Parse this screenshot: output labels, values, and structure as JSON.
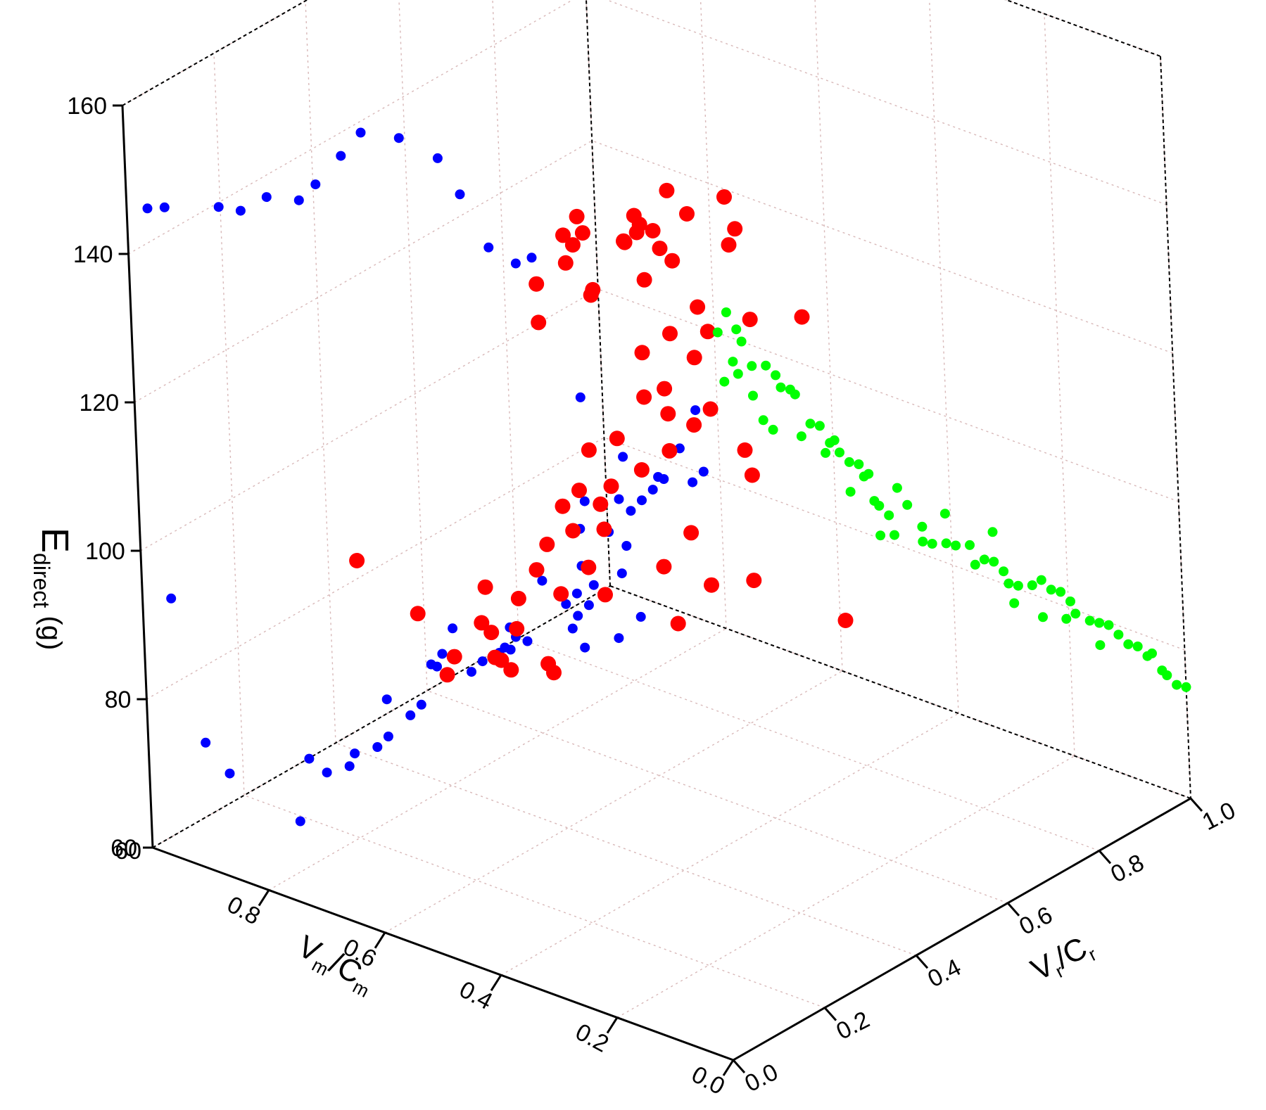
{
  "colors": {
    "series_0": "#0000ff",
    "series_1": "#ff0000",
    "series_2": "#00ff00"
  },
  "chart_data": {
    "type": "scatter",
    "title": "",
    "zlabel": "E",
    "zlabel_sub": "direct",
    "zlabel_unit": " (g)",
    "xlabel": "V",
    "xlabel_sub": "m",
    "xlabel_mid": "/C",
    "xlabel_sub2": "m",
    "ylabel": "V",
    "ylabel_sub": "r",
    "ylabel_mid": "/C",
    "ylabel_sub2": "r",
    "xlim": [
      0,
      1
    ],
    "ylim": [
      0,
      1
    ],
    "zlim": [
      60,
      160
    ],
    "x_ticks": [
      "0.0",
      "0.2",
      "0.4",
      "0.6",
      "0.8"
    ],
    "y_ticks": [
      "0.0",
      "0.2",
      "0.4",
      "0.6",
      "0.8",
      "1.0"
    ],
    "z_ticks": [
      "60",
      "80",
      "100",
      "120",
      "140",
      "160"
    ],
    "corner_tick_overlap": "60",
    "grid": true,
    "series": [
      {
        "description_plane": "projection onto back-left wall",
        "points": [
          [
            0.95,
            0,
            95
          ],
          [
            0.9,
            0,
            77
          ],
          [
            0.86,
            0,
            74
          ],
          [
            0.74,
            0,
            71
          ],
          [
            0.72,
            0,
            80
          ],
          [
            0.69,
            0,
            79
          ],
          [
            0.65,
            0,
            81
          ],
          [
            0.64,
            0,
            83
          ],
          [
            0.6,
            0,
            85
          ],
          [
            0.58,
            0,
            87
          ],
          [
            0.58,
            0,
            92
          ],
          [
            0.54,
            0,
            91
          ],
          [
            0.52,
            0,
            93
          ],
          [
            0.49,
            0,
            99
          ],
          [
            0.5,
            0,
            99
          ],
          [
            0.48,
            0,
            101
          ],
          [
            0.46,
            0,
            105
          ],
          [
            0.43,
            0,
            100
          ],
          [
            0.41,
            0,
            102
          ],
          [
            0.38,
            0,
            104
          ],
          [
            0.39,
            0,
            103
          ],
          [
            0.36,
            0,
            105
          ],
          [
            0.37,
            0,
            105
          ],
          [
            0.35,
            0,
            107
          ],
          [
            0.33,
            0,
            107
          ],
          [
            0.36,
            0,
            108
          ],
          [
            0.3,
            0,
            116
          ],
          [
            0.25,
            0,
            111
          ],
          [
            0.24,
            0,
            116
          ],
          [
            0.22,
            0,
            115
          ],
          [
            0.24,
            0,
            113
          ],
          [
            0.26,
            0,
            114
          ],
          [
            0.23,
            0,
            109
          ],
          [
            0.17,
            0,
            112
          ],
          [
            0.13,
            0,
            116
          ],
          [
            0.21,
            0,
            118
          ],
          [
            0.23,
            0,
            120
          ],
          [
            0.16,
            0,
            121
          ],
          [
            0.15,
            0,
            125
          ],
          [
            0.18,
            0,
            126
          ],
          [
            0.23,
            0,
            125
          ],
          [
            0.22,
            0,
            129
          ],
          [
            0.16,
            0,
            131
          ],
          [
            0.12,
            0,
            132
          ],
          [
            0.14,
            0,
            130
          ],
          [
            0.1,
            0,
            134
          ],
          [
            0.09,
            0,
            136
          ],
          [
            0.08,
            0,
            136
          ],
          [
            0.15,
            0,
            137
          ],
          [
            0.03,
            0,
            137
          ],
          [
            0.01,
            0,
            139
          ],
          [
            0.05,
            0,
            141
          ],
          [
            0.22,
            0,
            143
          ],
          [
            0.02,
            0,
            147
          ],
          [
            0.98,
            0.02,
            146
          ],
          [
            0.95,
            0.02,
            147
          ],
          [
            0.88,
            0.05,
            148
          ],
          [
            0.85,
            0.06,
            148
          ],
          [
            0.82,
            0.08,
            150
          ],
          [
            0.78,
            0.1,
            150
          ],
          [
            0.75,
            0.1,
            153
          ],
          [
            0.72,
            0.12,
            157
          ],
          [
            0.7,
            0.14,
            160
          ],
          [
            0.65,
            0.16,
            160
          ],
          [
            0.6,
            0.18,
            158
          ],
          [
            0.58,
            0.2,
            153
          ],
          [
            0.55,
            0.22,
            146
          ],
          [
            0.52,
            0.24,
            144
          ],
          [
            0.5,
            0.25,
            145
          ]
        ]
      },
      {
        "description_plane": "interior",
        "points": [
          [
            0.2,
            0.3,
            160
          ],
          [
            0.25,
            0.28,
            157
          ],
          [
            0.2,
            0.32,
            155
          ],
          [
            0.3,
            0.3,
            158
          ],
          [
            0.35,
            0.3,
            152
          ],
          [
            0.4,
            0.35,
            150
          ],
          [
            0.38,
            0.33,
            149
          ],
          [
            0.45,
            0.3,
            148
          ],
          [
            0.42,
            0.35,
            146
          ],
          [
            0.5,
            0.35,
            147
          ],
          [
            0.55,
            0.38,
            142
          ],
          [
            0.45,
            0.45,
            143
          ],
          [
            0.5,
            0.45,
            140
          ],
          [
            0.55,
            0.4,
            140
          ],
          [
            0.58,
            0.42,
            136
          ],
          [
            0.6,
            0.38,
            134
          ],
          [
            0.48,
            0.5,
            138
          ],
          [
            0.4,
            0.55,
            139
          ],
          [
            0.5,
            0.55,
            134
          ],
          [
            0.55,
            0.55,
            130
          ],
          [
            0.6,
            0.5,
            129
          ],
          [
            0.62,
            0.52,
            127
          ],
          [
            0.5,
            0.6,
            126
          ],
          [
            0.45,
            0.65,
            124
          ],
          [
            0.5,
            0.62,
            122
          ],
          [
            0.55,
            0.6,
            121
          ],
          [
            0.4,
            0.7,
            124
          ],
          [
            0.6,
            0.6,
            117
          ],
          [
            0.55,
            0.65,
            116
          ],
          [
            0.58,
            0.62,
            112
          ],
          [
            0.6,
            0.6,
            111
          ],
          [
            0.55,
            0.68,
            108
          ],
          [
            0.6,
            0.65,
            107
          ],
          [
            0.58,
            0.68,
            105
          ],
          [
            0.65,
            0.6,
            104
          ],
          [
            0.6,
            0.65,
            102
          ],
          [
            0.7,
            0.6,
            101
          ],
          [
            0.55,
            0.75,
            100
          ],
          [
            0.65,
            0.65,
            98
          ],
          [
            0.68,
            0.62,
            96
          ],
          [
            0.72,
            0.6,
            95
          ],
          [
            0.7,
            0.62,
            93
          ],
          [
            0.75,
            0.6,
            92
          ],
          [
            0.58,
            0.8,
            94
          ],
          [
            0.72,
            0.65,
            88
          ],
          [
            0.75,
            0.62,
            88
          ],
          [
            0.78,
            0.6,
            86
          ],
          [
            0.65,
            0.75,
            86
          ],
          [
            0.8,
            0.6,
            82
          ],
          [
            0.75,
            0.65,
            82
          ],
          [
            0.85,
            0.55,
            80
          ],
          [
            0.7,
            0.75,
            80
          ],
          [
            0.8,
            0.65,
            77
          ],
          [
            0.85,
            0.62,
            76
          ],
          [
            0.78,
            0.72,
            75
          ],
          [
            0.9,
            0.6,
            72
          ],
          [
            0.88,
            0.65,
            70
          ],
          [
            0.9,
            0.62,
            70
          ],
          [
            0.95,
            0.6,
            66
          ],
          [
            0.92,
            0.65,
            65
          ],
          [
            0.95,
            0.7,
            62
          ],
          [
            0.98,
            0.62,
            62
          ],
          [
            0.9,
            0.75,
            60
          ],
          [
            0.95,
            0.72,
            60
          ],
          [
            0.95,
            0.8,
            58
          ],
          [
            0.65,
            0.88,
            75
          ],
          [
            0.7,
            0.85,
            74
          ],
          [
            0.72,
            0.8,
            70
          ],
          [
            0.55,
            0.95,
            70
          ],
          [
            0.82,
            0.65,
            113
          ],
          [
            0.95,
            0.4,
            86
          ],
          [
            0.97,
            0.55,
            73
          ]
        ]
      },
      {
        "description_plane": "projection onto back-right wall",
        "points": [
          [
            0,
            0.03,
            157
          ],
          [
            0,
            0.05,
            159
          ],
          [
            0,
            0.07,
            156
          ],
          [
            0,
            0.08,
            154
          ],
          [
            0,
            0.04,
            150
          ],
          [
            0,
            0.07,
            150
          ],
          [
            0,
            0.1,
            150
          ],
          [
            0,
            0.13,
            149
          ],
          [
            0,
            0.15,
            147
          ],
          [
            0,
            0.16,
            145
          ],
          [
            0,
            0.18,
            144
          ],
          [
            0,
            0.19,
            143
          ],
          [
            0,
            0.14,
            140
          ],
          [
            0,
            0.22,
            138
          ],
          [
            0,
            0.24,
            137
          ],
          [
            0,
            0.26,
            134
          ],
          [
            0,
            0.25,
            133
          ],
          [
            0,
            0.27,
            134
          ],
          [
            0,
            0.3,
            130
          ],
          [
            0,
            0.32,
            129
          ],
          [
            0,
            0.33,
            127
          ],
          [
            0,
            0.34,
            127
          ],
          [
            0,
            0.35,
            123
          ],
          [
            0,
            0.36,
            122
          ],
          [
            0,
            0.38,
            120
          ],
          [
            0,
            0.42,
            120
          ],
          [
            0,
            0.36,
            118
          ],
          [
            0,
            0.39,
            117
          ],
          [
            0,
            0.45,
            116
          ],
          [
            0,
            0.47,
            113
          ],
          [
            0,
            0.5,
            112
          ],
          [
            0,
            0.52,
            111
          ],
          [
            0,
            0.55,
            110
          ],
          [
            0,
            0.56,
            107
          ],
          [
            0,
            0.58,
            107
          ],
          [
            0,
            0.6,
            106
          ],
          [
            0,
            0.62,
            104
          ],
          [
            0,
            0.63,
            102
          ],
          [
            0,
            0.65,
            101
          ],
          [
            0,
            0.68,
            100
          ],
          [
            0,
            0.7,
            100
          ],
          [
            0,
            0.72,
            98
          ],
          [
            0,
            0.74,
            97
          ],
          [
            0,
            0.76,
            95
          ],
          [
            0,
            0.77,
            93
          ],
          [
            0,
            0.8,
            91
          ],
          [
            0,
            0.82,
            90
          ],
          [
            0,
            0.84,
            89
          ],
          [
            0,
            0.82,
            87
          ],
          [
            0,
            0.86,
            87
          ],
          [
            0,
            0.88,
            85
          ],
          [
            0,
            0.9,
            84
          ],
          [
            0,
            0.92,
            82
          ],
          [
            0,
            0.93,
            82
          ],
          [
            0,
            0.95,
            79
          ],
          [
            0,
            0.96,
            78
          ],
          [
            0,
            0.98,
            76
          ],
          [
            0,
            1.0,
            75
          ],
          [
            0,
            0.6,
            110
          ],
          [
            0,
            0.64,
            99
          ],
          [
            0,
            0.7,
            95
          ],
          [
            0,
            0.75,
            93
          ],
          [
            0,
            0.5,
            116
          ],
          [
            0,
            0.45,
            114
          ],
          [
            0,
            0.4,
            123
          ],
          [
            0,
            0.3,
            126
          ],
          [
            0,
            0.28,
            132
          ],
          [
            0,
            0.2,
            137
          ],
          [
            0,
            0.12,
            142
          ],
          [
            0,
            0.1,
            146
          ],
          [
            0,
            0.06,
            152
          ]
        ]
      }
    ]
  }
}
